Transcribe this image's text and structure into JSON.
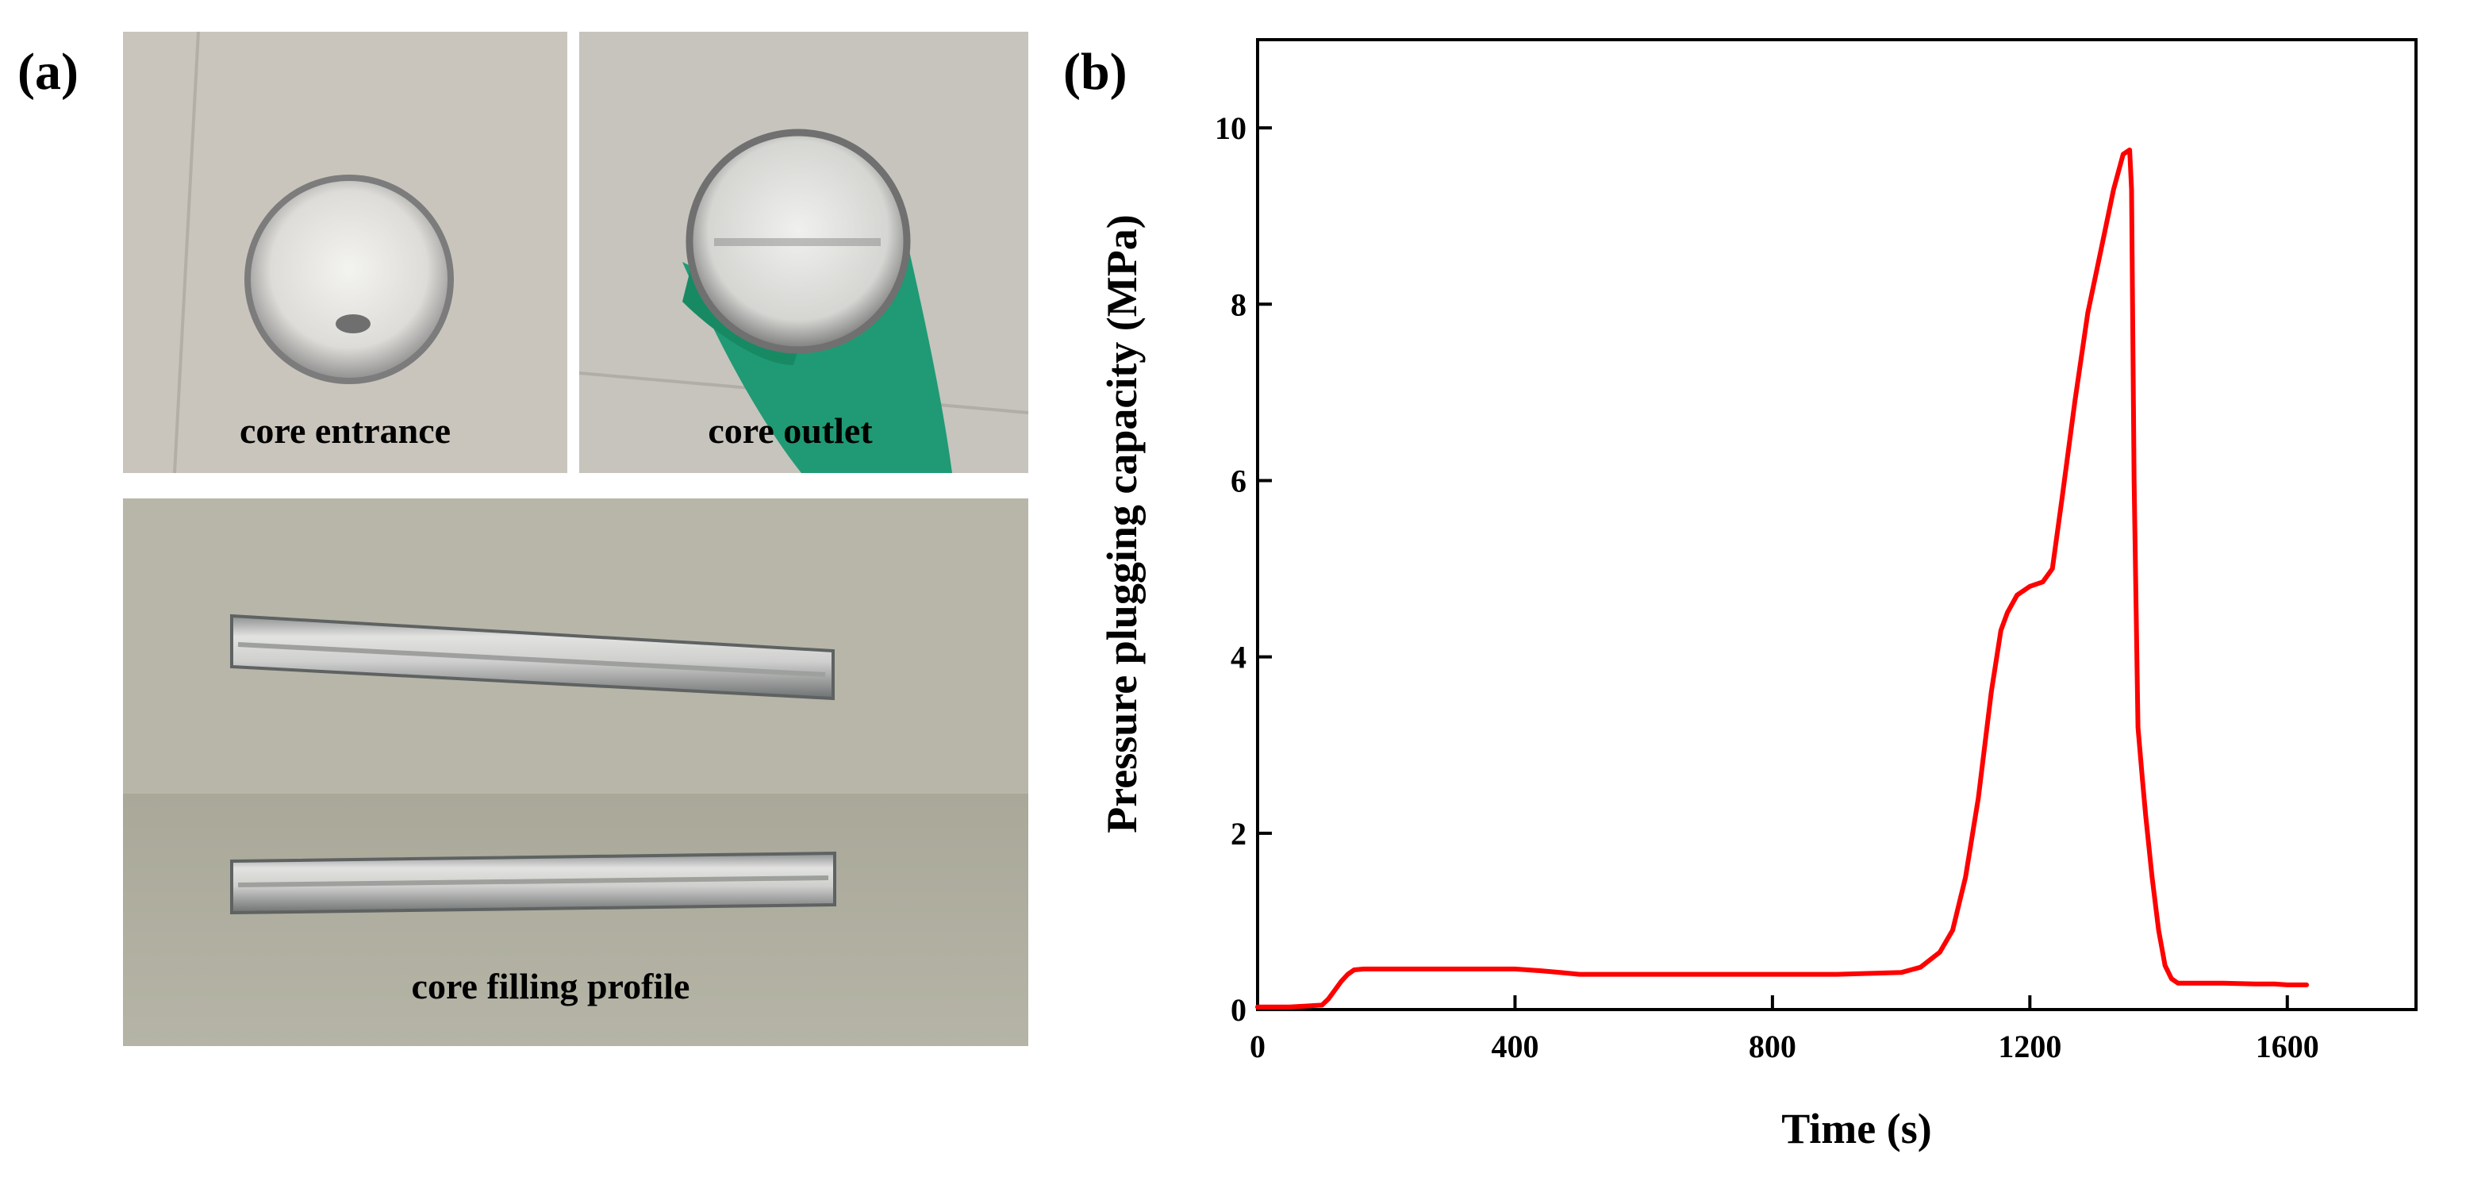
{
  "panels": {
    "a_label": "(a)",
    "b_label": "(b)"
  },
  "photos": {
    "entrance_caption": "core entrance",
    "outlet_caption": "core outlet",
    "profile_caption": "core filling profile"
  },
  "chart_data": {
    "type": "line",
    "xlabel": "Time (s)",
    "ylabel": "Pressure plugging capacity (MPa)",
    "xlim": [
      0,
      1800
    ],
    "ylim": [
      0,
      11
    ],
    "xticks": [
      0,
      400,
      800,
      1200,
      1600
    ],
    "xtick_labels": [
      "0",
      "400",
      "800",
      "1200",
      "1600"
    ],
    "yticks": [
      0,
      2,
      4,
      6,
      8,
      10
    ],
    "ytick_labels": [
      "0",
      "2",
      "4",
      "6",
      "8",
      "10"
    ],
    "grid": false,
    "series": [
      {
        "color": "#ff0000",
        "x": [
          0,
          50,
          100,
          110,
          120,
          130,
          140,
          150,
          165,
          180,
          250,
          400,
          440,
          470,
          500,
          600,
          700,
          800,
          900,
          1000,
          1030,
          1060,
          1080,
          1100,
          1120,
          1140,
          1155,
          1165,
          1180,
          1200,
          1220,
          1235,
          1250,
          1270,
          1290,
          1310,
          1330,
          1345,
          1355,
          1358,
          1362,
          1368,
          1375,
          1380,
          1390,
          1400,
          1410,
          1420,
          1430,
          1440,
          1460,
          1500,
          1550,
          1580,
          1600,
          1630
        ],
        "y": [
          0.03,
          0.03,
          0.05,
          0.12,
          0.22,
          0.32,
          0.4,
          0.45,
          0.46,
          0.46,
          0.46,
          0.46,
          0.44,
          0.42,
          0.4,
          0.4,
          0.4,
          0.4,
          0.4,
          0.42,
          0.48,
          0.65,
          0.9,
          1.5,
          2.4,
          3.6,
          4.3,
          4.5,
          4.7,
          4.8,
          4.85,
          5.0,
          5.8,
          6.9,
          7.9,
          8.6,
          9.3,
          9.7,
          9.75,
          9.3,
          6.0,
          3.2,
          2.6,
          2.2,
          1.5,
          0.9,
          0.5,
          0.35,
          0.3,
          0.3,
          0.3,
          0.3,
          0.29,
          0.29,
          0.28,
          0.28
        ]
      }
    ]
  }
}
